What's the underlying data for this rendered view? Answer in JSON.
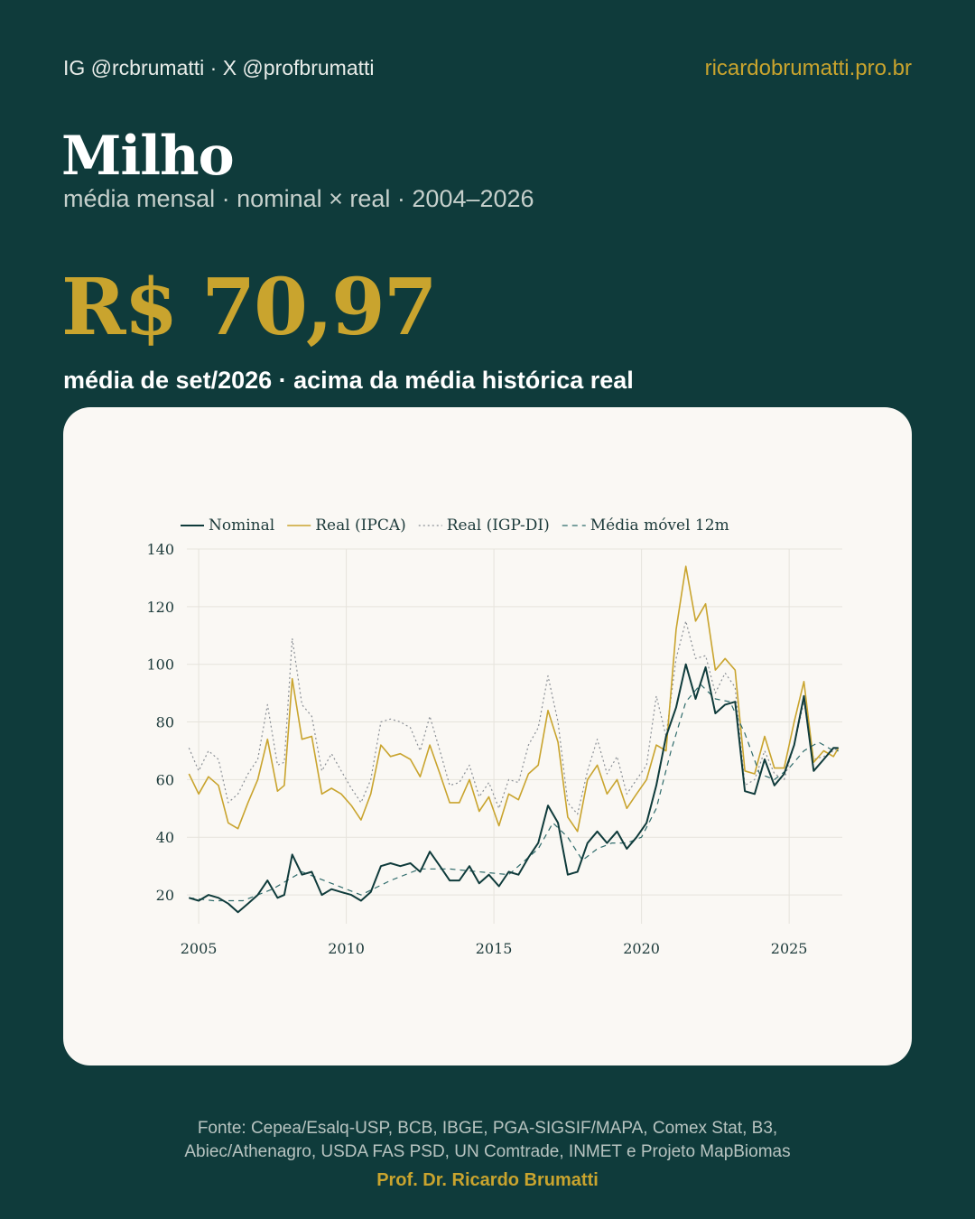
{
  "header": {
    "social": "IG @rcbrumatti · X @profbrumatti",
    "site": "ricardobrumatti.pro.br"
  },
  "title": "Milho",
  "subtitle": "média mensal · nominal × real · 2004–2026",
  "headline": {
    "value": "R$ 70,97",
    "caption": "média de set/2026 · acima da média histórica real"
  },
  "footer": {
    "source_line1": "Fonte: Cepea/Esalq-USP, BCB, IBGE, PGA-SIGSIF/MAPA, Comex Stat, B3,",
    "source_line2": "Abiec/Athenagro, USDA FAS PSD, UN Comtrade, INMET e Projeto MapBiomas",
    "author": "Prof. Dr. Ricardo Brumatti"
  },
  "colors": {
    "background": "#0f3b3b",
    "accent": "#c9a42e",
    "nominal": "#0f3b3b",
    "real_ipca": "#c9a42e",
    "real_igpdi": "#8a8f95",
    "moving_avg": "#2f6b6b"
  },
  "chart_data": {
    "type": "line",
    "x_ticks": [
      2005,
      2010,
      2015,
      2020,
      2025
    ],
    "y_ticks": [
      20,
      40,
      60,
      80,
      100,
      120,
      140
    ],
    "xlim": [
      2004.6,
      2026.8
    ],
    "ylim": [
      10,
      140
    ],
    "grid": true,
    "legend_position": "top",
    "series": [
      {
        "name": "Nominal",
        "style": "solid",
        "x": [
          2004.67,
          2005.0,
          2005.33,
          2005.67,
          2006.0,
          2006.33,
          2006.67,
          2007.0,
          2007.33,
          2007.67,
          2007.9,
          2008.17,
          2008.5,
          2008.83,
          2009.17,
          2009.5,
          2009.83,
          2010.17,
          2010.5,
          2010.83,
          2011.17,
          2011.5,
          2011.83,
          2012.17,
          2012.5,
          2012.83,
          2013.17,
          2013.5,
          2013.83,
          2014.17,
          2014.5,
          2014.83,
          2015.17,
          2015.5,
          2015.83,
          2016.17,
          2016.5,
          2016.83,
          2017.17,
          2017.5,
          2017.83,
          2018.17,
          2018.5,
          2018.83,
          2019.17,
          2019.5,
          2019.83,
          2020.17,
          2020.5,
          2020.83,
          2021.17,
          2021.5,
          2021.83,
          2022.17,
          2022.5,
          2022.83,
          2023.17,
          2023.5,
          2023.83,
          2024.17,
          2024.5,
          2024.83,
          2025.17,
          2025.5,
          2025.83,
          2026.17,
          2026.5,
          2026.67
        ],
        "values": [
          19,
          18,
          20,
          19,
          17,
          14,
          17,
          20,
          25,
          19,
          20,
          34,
          27,
          28,
          20,
          22,
          21,
          20,
          18,
          21,
          30,
          31,
          30,
          31,
          28,
          35,
          30,
          25,
          25,
          30,
          24,
          27,
          23,
          28,
          27,
          33,
          38,
          51,
          45,
          27,
          28,
          38,
          42,
          38,
          42,
          36,
          40,
          45,
          58,
          75,
          85,
          100,
          88,
          99,
          83,
          86,
          87,
          56,
          55,
          67,
          58,
          62,
          72,
          89,
          63,
          67,
          71,
          70.97
        ]
      },
      {
        "name": "Real (IPCA)",
        "style": "solid",
        "x": [
          2004.67,
          2005.0,
          2005.33,
          2005.67,
          2006.0,
          2006.33,
          2006.67,
          2007.0,
          2007.33,
          2007.67,
          2007.9,
          2008.17,
          2008.5,
          2008.83,
          2009.17,
          2009.5,
          2009.83,
          2010.17,
          2010.5,
          2010.83,
          2011.17,
          2011.5,
          2011.83,
          2012.17,
          2012.5,
          2012.83,
          2013.17,
          2013.5,
          2013.83,
          2014.17,
          2014.5,
          2014.83,
          2015.17,
          2015.5,
          2015.83,
          2016.17,
          2016.5,
          2016.83,
          2017.17,
          2017.5,
          2017.83,
          2018.17,
          2018.5,
          2018.83,
          2019.17,
          2019.5,
          2019.83,
          2020.17,
          2020.5,
          2020.83,
          2021.17,
          2021.5,
          2021.83,
          2022.17,
          2022.5,
          2022.83,
          2023.17,
          2023.5,
          2023.83,
          2024.17,
          2024.5,
          2024.83,
          2025.17,
          2025.5,
          2025.83,
          2026.17,
          2026.5,
          2026.67
        ],
        "values": [
          62,
          55,
          61,
          58,
          45,
          43,
          52,
          60,
          74,
          56,
          58,
          95,
          74,
          75,
          55,
          57,
          55,
          51,
          46,
          55,
          72,
          68,
          69,
          67,
          61,
          72,
          62,
          52,
          52,
          60,
          49,
          54,
          44,
          55,
          53,
          62,
          65,
          84,
          73,
          47,
          42,
          60,
          65,
          55,
          60,
          50,
          55,
          60,
          72,
          70,
          112,
          134,
          115,
          121,
          98,
          102,
          98,
          63,
          62,
          75,
          64,
          64,
          80,
          94,
          66,
          70,
          68,
          71
        ]
      },
      {
        "name": "Real (IGP-DI)",
        "style": "dotted",
        "x": [
          2004.67,
          2005.0,
          2005.33,
          2005.67,
          2006.0,
          2006.33,
          2006.67,
          2007.0,
          2007.33,
          2007.67,
          2007.9,
          2008.17,
          2008.5,
          2008.83,
          2009.17,
          2009.5,
          2009.83,
          2010.17,
          2010.5,
          2010.83,
          2011.17,
          2011.5,
          2011.83,
          2012.17,
          2012.5,
          2012.83,
          2013.17,
          2013.5,
          2013.83,
          2014.17,
          2014.5,
          2014.83,
          2015.17,
          2015.5,
          2015.83,
          2016.17,
          2016.5,
          2016.83,
          2017.17,
          2017.5,
          2017.83,
          2018.17,
          2018.5,
          2018.83,
          2019.17,
          2019.5,
          2019.83,
          2020.17,
          2020.5,
          2020.83,
          2021.17,
          2021.5,
          2021.83,
          2022.17,
          2022.5,
          2022.83,
          2023.17,
          2023.5,
          2023.83,
          2024.17,
          2024.5,
          2024.83,
          2025.17,
          2025.5,
          2025.83,
          2026.17,
          2026.5,
          2026.67
        ],
        "values": [
          71,
          63,
          70,
          67,
          52,
          55,
          62,
          67,
          86,
          65,
          66,
          109,
          86,
          82,
          63,
          69,
          63,
          57,
          52,
          60,
          80,
          81,
          80,
          78,
          70,
          82,
          70,
          58,
          59,
          65,
          54,
          59,
          50,
          60,
          59,
          72,
          78,
          96,
          80,
          52,
          48,
          63,
          74,
          62,
          68,
          55,
          60,
          65,
          89,
          75,
          102,
          115,
          102,
          103,
          90,
          97,
          92,
          58,
          60,
          70,
          62,
          60,
          72,
          87,
          67,
          68,
          70,
          71
        ]
      },
      {
        "name": "Média móvel 12m",
        "style": "dashed",
        "x": [
          2004.67,
          2005.5,
          2006.5,
          2007.5,
          2008.5,
          2009.5,
          2010.5,
          2011.5,
          2012.5,
          2013.5,
          2014.5,
          2015.5,
          2016.5,
          2017.0,
          2017.5,
          2018.0,
          2018.5,
          2019.0,
          2019.5,
          2020.0,
          2020.5,
          2021.0,
          2021.5,
          2022.0,
          2022.5,
          2023.0,
          2023.5,
          2024.0,
          2024.5,
          2025.0,
          2025.5,
          2026.0,
          2026.5,
          2026.67
        ],
        "values": [
          19,
          18,
          18,
          22,
          28,
          24,
          20,
          25,
          29,
          29,
          28,
          27,
          36,
          45,
          40,
          32,
          36,
          38,
          38,
          40,
          50,
          70,
          87,
          93,
          88,
          87,
          76,
          62,
          60,
          64,
          70,
          73,
          70,
          70
        ]
      }
    ]
  }
}
